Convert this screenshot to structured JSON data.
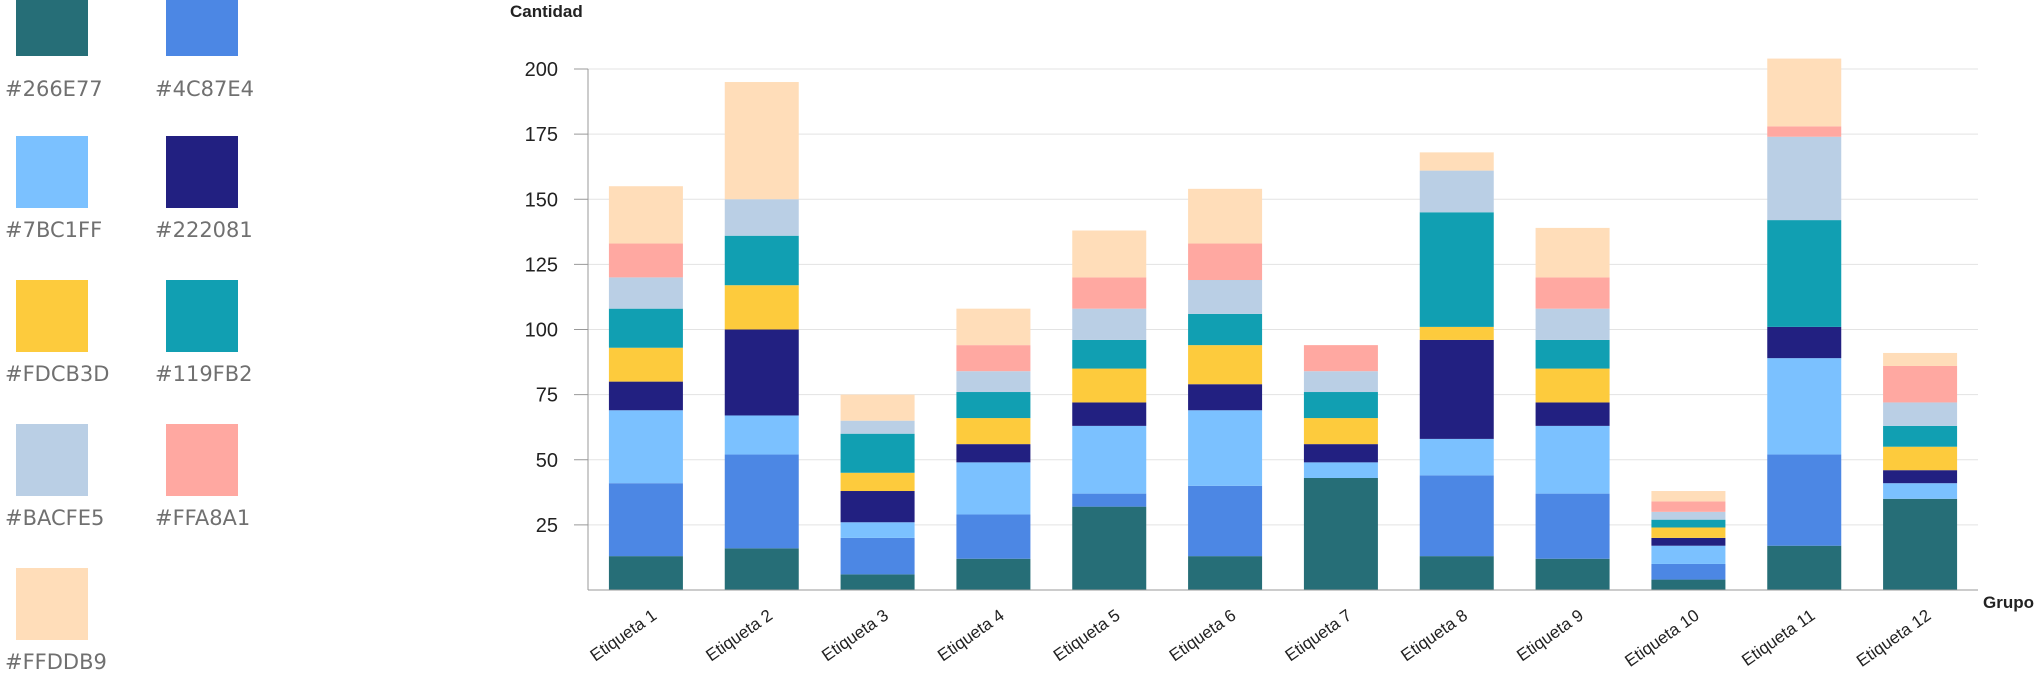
{
  "palette": [
    {
      "color": "#266E77",
      "label": "#266E77"
    },
    {
      "color": "#4C87E4",
      "label": "#4C87E4"
    },
    {
      "color": "#7BC1FF",
      "label": "#7BC1FF"
    },
    {
      "color": "#222081",
      "label": "#222081"
    },
    {
      "color": "#FDCB3D",
      "label": "#FDCB3D"
    },
    {
      "color": "#119FB2",
      "label": "#119FB2"
    },
    {
      "color": "#BACFE5",
      "label": "#BACFE5"
    },
    {
      "color": "#FFA8A1",
      "label": "#FFA8A1"
    },
    {
      "color": "#FFDDB9",
      "label": "#FFDDB9"
    }
  ],
  "chart_data": {
    "type": "bar",
    "stacked": true,
    "ylabel": "Cantidad",
    "xlabel": "Grupo",
    "ylim": [
      0,
      200
    ],
    "yticks": [
      25,
      50,
      75,
      100,
      125,
      150,
      175,
      200
    ],
    "grid": true,
    "categories": [
      "Etiqueta 1",
      "Etiqueta 2",
      "Etiqueta 3",
      "Etiqueta 4",
      "Etiqueta 5",
      "Etiqueta 6",
      "Etiqueta 7",
      "Etiqueta 8",
      "Etiqueta 9",
      "Etiqueta 10",
      "Etiqueta 11",
      "Etiqueta 12"
    ],
    "series": [
      {
        "color": "#266E77",
        "values": [
          13,
          16,
          6,
          12,
          32,
          13,
          43,
          13,
          12,
          4,
          17,
          35
        ]
      },
      {
        "color": "#4C87E4",
        "values": [
          28,
          36,
          14,
          17,
          5,
          27,
          0,
          31,
          25,
          6,
          35,
          0
        ]
      },
      {
        "color": "#7BC1FF",
        "values": [
          28,
          15,
          6,
          20,
          26,
          29,
          6,
          14,
          26,
          7,
          37,
          6
        ]
      },
      {
        "color": "#222081",
        "values": [
          11,
          33,
          12,
          7,
          9,
          10,
          7,
          38,
          9,
          3,
          12,
          5
        ]
      },
      {
        "color": "#FDCB3D",
        "values": [
          13,
          17,
          7,
          10,
          13,
          15,
          10,
          5,
          13,
          4,
          0,
          9
        ]
      },
      {
        "color": "#119FB2",
        "values": [
          15,
          19,
          15,
          10,
          11,
          12,
          10,
          44,
          11,
          3,
          41,
          8
        ]
      },
      {
        "color": "#BACFE5",
        "values": [
          12,
          14,
          5,
          8,
          12,
          13,
          8,
          16,
          12,
          3,
          32,
          9
        ]
      },
      {
        "color": "#FFA8A1",
        "values": [
          13,
          0,
          0,
          10,
          12,
          14,
          10,
          0,
          12,
          4,
          4,
          14
        ]
      },
      {
        "color": "#FFDDB9",
        "values": [
          22,
          45,
          10,
          14,
          18,
          21,
          0,
          7,
          19,
          4,
          26,
          5
        ]
      }
    ]
  }
}
